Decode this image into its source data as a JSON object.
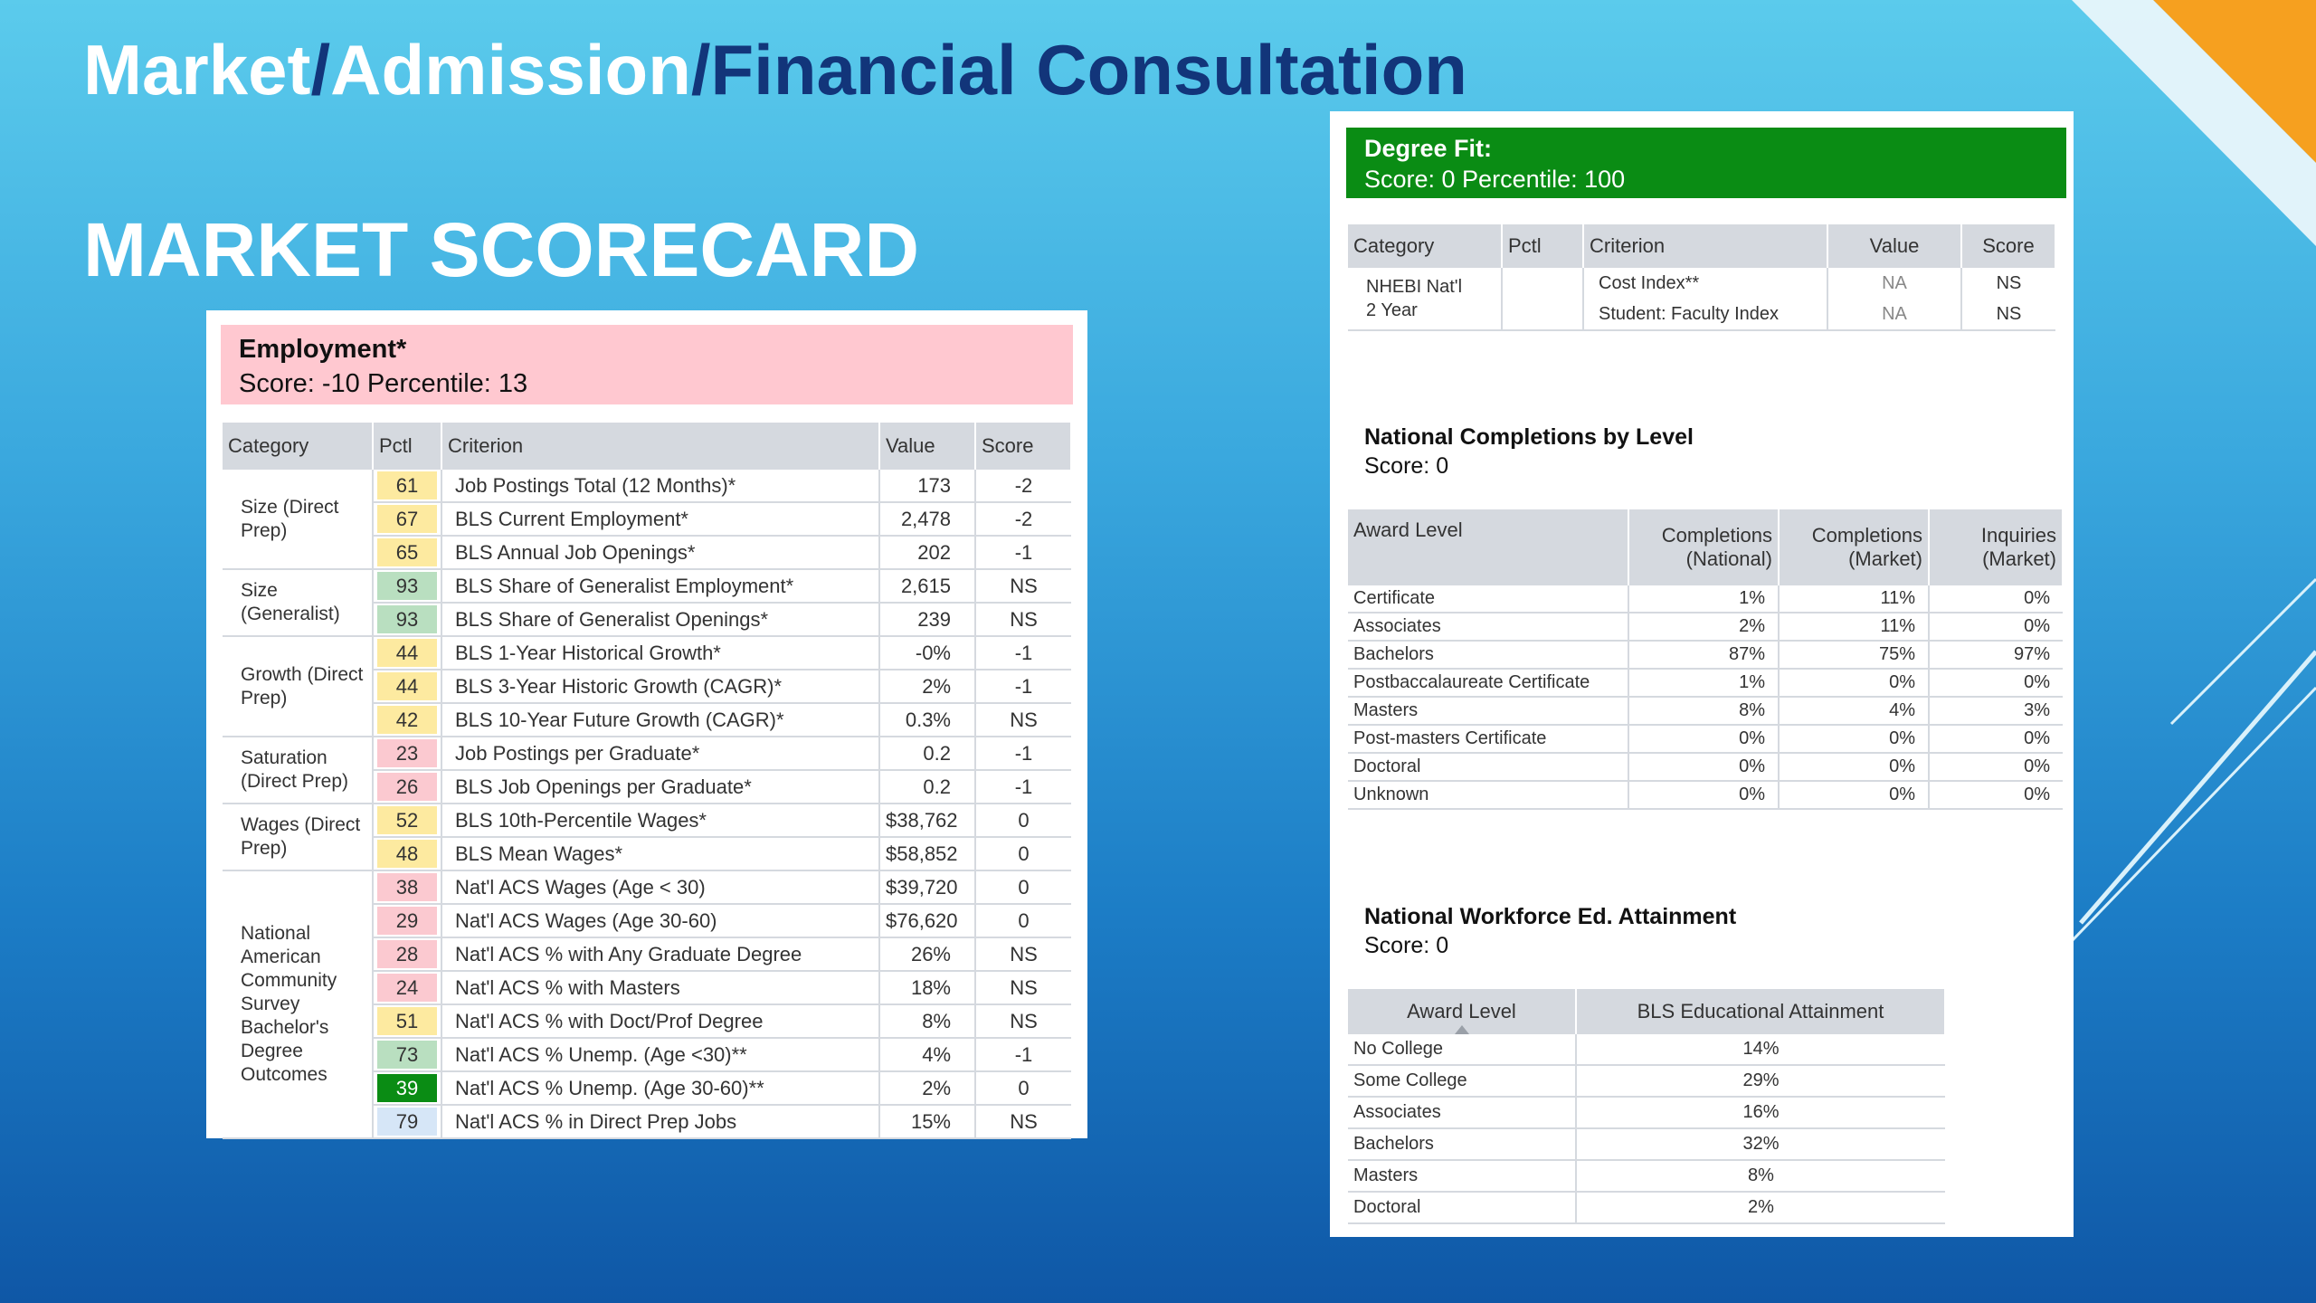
{
  "slide": {
    "title_parts": [
      "Market",
      "/",
      "Admission",
      "/",
      "Financial Consultation"
    ],
    "subtitle": "MARKET SCORECARD"
  },
  "colors": {
    "accent_orange": "#f6a01f",
    "title_dark": "#12357a",
    "employment_header_bg": "#ffc8d0",
    "degree_fit_header_bg": "#0a8c14"
  },
  "employment": {
    "title": "Employment*",
    "score_line": "Score: -10  Percentile: 13",
    "columns": [
      "Category",
      "Pctl",
      "Criterion",
      "Value",
      "Score"
    ],
    "groups": [
      {
        "category": "Size (Direct Prep)",
        "rows": [
          {
            "pctl": "61",
            "color": "#fdeaa0",
            "criterion": "Job Postings Total (12 Months)*",
            "value": "173",
            "score": "-2"
          },
          {
            "pctl": "67",
            "color": "#fdeaa0",
            "criterion": "BLS Current Employment*",
            "value": "2,478",
            "score": "-2"
          },
          {
            "pctl": "65",
            "color": "#fdeaa0",
            "criterion": "BLS Annual Job Openings*",
            "value": "202",
            "score": "-1"
          }
        ]
      },
      {
        "category": "Size (Generalist)",
        "rows": [
          {
            "pctl": "93",
            "color": "#b9dfc0",
            "criterion": "BLS Share of Generalist Employment*",
            "value": "2,615",
            "score": "NS"
          },
          {
            "pctl": "93",
            "color": "#b9dfc0",
            "criterion": "BLS Share of Generalist Openings*",
            "value": "239",
            "score": "NS"
          }
        ]
      },
      {
        "category": "Growth (Direct Prep)",
        "rows": [
          {
            "pctl": "44",
            "color": "#fdeaa0",
            "criterion": "BLS 1-Year Historical Growth*",
            "value": "-0%",
            "score": "-1"
          },
          {
            "pctl": "44",
            "color": "#fdeaa0",
            "criterion": "BLS 3-Year Historic Growth (CAGR)*",
            "value": "2%",
            "score": "-1"
          },
          {
            "pctl": "42",
            "color": "#fdeaa0",
            "criterion": "BLS 10-Year Future Growth (CAGR)*",
            "value": "0.3%",
            "score": "NS"
          }
        ]
      },
      {
        "category": "Saturation (Direct Prep)",
        "rows": [
          {
            "pctl": "23",
            "color": "#fbc9d0",
            "criterion": "Job Postings per Graduate*",
            "value": "0.2",
            "score": "-1"
          },
          {
            "pctl": "26",
            "color": "#fbc9d0",
            "criterion": "BLS Job Openings per Graduate*",
            "value": "0.2",
            "score": "-1"
          }
        ]
      },
      {
        "category": "Wages (Direct Prep)",
        "rows": [
          {
            "pctl": "52",
            "color": "#fdeaa0",
            "criterion": "BLS 10th-Percentile Wages*",
            "value": "$38,762",
            "score": "0"
          },
          {
            "pctl": "48",
            "color": "#fdeaa0",
            "criterion": "BLS Mean Wages*",
            "value": "$58,852",
            "score": "0"
          }
        ]
      },
      {
        "category": "National American Community Survey Bachelor's Degree Outcomes",
        "rows": [
          {
            "pctl": "38",
            "color": "#fbc9d0",
            "criterion": "Nat'l ACS Wages (Age < 30)",
            "value": "$39,720",
            "score": "0"
          },
          {
            "pctl": "29",
            "color": "#fbc9d0",
            "criterion": "Nat'l ACS Wages (Age 30-60)",
            "value": "$76,620",
            "score": "0"
          },
          {
            "pctl": "28",
            "color": "#fbc9d0",
            "criterion": "Nat'l ACS % with Any Graduate Degree",
            "value": "26%",
            "score": "NS"
          },
          {
            "pctl": "24",
            "color": "#fbc9d0",
            "criterion": "Nat'l ACS % with Masters",
            "value": "18%",
            "score": "NS"
          },
          {
            "pctl": "51",
            "color": "#fdeaa0",
            "criterion": "Nat'l ACS % with Doct/Prof Degree",
            "value": "8%",
            "score": "NS"
          },
          {
            "pctl": "73",
            "color": "#b9dfc0",
            "criterion": "Nat'l ACS % Unemp. (Age <30)**",
            "value": "4%",
            "score": "-1"
          },
          {
            "pctl": "39",
            "color": "#0a8c14",
            "criterion": "Nat'l ACS % Unemp. (Age 30-60)**",
            "value": "2%",
            "score": "0"
          },
          {
            "pctl": "79",
            "color": "#d6e6f7",
            "criterion": "Nat'l ACS % in Direct Prep Jobs",
            "value": "15%",
            "score": "NS"
          }
        ]
      }
    ]
  },
  "degree_fit": {
    "title": "Degree Fit:",
    "score_line": "Score: 0  Percentile: 100",
    "columns": [
      "Category",
      "Pctl",
      "Criterion",
      "Value",
      "Score"
    ],
    "category_lines": [
      "NHEBI Nat'l",
      "2 Year"
    ],
    "rows": [
      {
        "criterion": "Cost Index**",
        "value": "NA",
        "score": "NS"
      },
      {
        "criterion": "Student: Faculty Index",
        "value": "NA",
        "score": "NS"
      }
    ]
  },
  "national_completions": {
    "title": "National Completions by Level",
    "score": "Score: 0",
    "columns": [
      "Award Level",
      "Completions (National)",
      "Completions (Market)",
      "Inquiries (Market)"
    ],
    "rows": [
      [
        "Certificate",
        "1%",
        "11%",
        "0%"
      ],
      [
        "Associates",
        "2%",
        "11%",
        "0%"
      ],
      [
        "Bachelors",
        "87%",
        "75%",
        "97%"
      ],
      [
        "Postbaccalaureate Certificate",
        "1%",
        "0%",
        "0%"
      ],
      [
        "Masters",
        "8%",
        "4%",
        "3%"
      ],
      [
        "Post-masters Certificate",
        "0%",
        "0%",
        "0%"
      ],
      [
        "Doctoral",
        "0%",
        "0%",
        "0%"
      ],
      [
        "Unknown",
        "0%",
        "0%",
        "0%"
      ]
    ]
  },
  "workforce": {
    "title": "National Workforce Ed. Attainment",
    "score": "Score: 0",
    "columns": [
      "Award Level",
      "BLS Educational Attainment"
    ],
    "sort_icon": "sort-up-icon",
    "rows": [
      [
        "No College",
        "14%"
      ],
      [
        "Some College",
        "29%"
      ],
      [
        "Associates",
        "16%"
      ],
      [
        "Bachelors",
        "32%"
      ],
      [
        "Masters",
        "8%"
      ],
      [
        "Doctoral",
        "2%"
      ]
    ]
  }
}
